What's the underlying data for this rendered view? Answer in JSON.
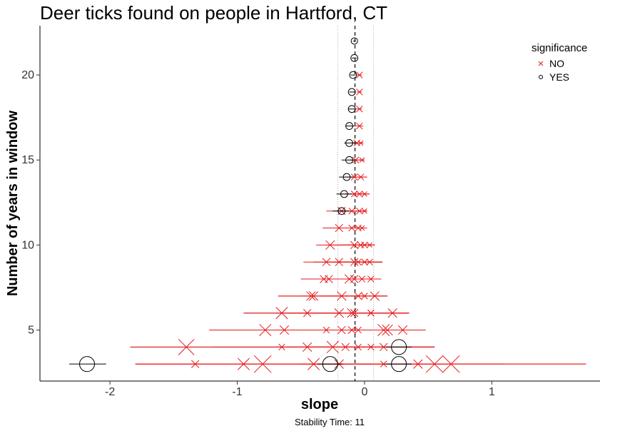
{
  "chart_data": {
    "type": "scatter",
    "title": "Deer ticks found on people in Hartford, CT",
    "xlabel": "slope",
    "ylabel": "Number of years in window",
    "caption": "Stability Time: 11",
    "xlim": [
      -2.55,
      1.85
    ],
    "ylim": [
      2.0,
      22.9
    ],
    "x_ticks": [
      -2,
      -1,
      0,
      1
    ],
    "y_ticks": [
      5,
      10,
      15,
      20
    ],
    "reference_lines": {
      "dashed_x": -0.075,
      "dotted_x": [
        -0.21,
        0.07
      ]
    },
    "grid": false,
    "legend": {
      "title": "significance",
      "position": "top-right",
      "items": [
        {
          "label": "NO",
          "marker": "x",
          "color": "#e41a1c"
        },
        {
          "label": "YES",
          "marker": "circle",
          "color": "#000000"
        }
      ]
    },
    "colors": {
      "NO": "#e41a1c",
      "YES": "#000000"
    },
    "series": [
      {
        "name": "NO",
        "marker": "x",
        "points": [
          {
            "y": 3,
            "x": -1.33,
            "xmin": -1.8,
            "xmax": -0.85,
            "size": 0.3
          },
          {
            "y": 3,
            "x": -0.95,
            "xmin": -1.8,
            "xmax": -0.1,
            "size": 0.6
          },
          {
            "y": 3,
            "x": -0.8,
            "xmin": -1.8,
            "xmax": 0.2,
            "size": 1.0
          },
          {
            "y": 3,
            "x": -0.4,
            "xmin": -1.8,
            "xmax": 0.6,
            "size": 0.6
          },
          {
            "y": 3,
            "x": -0.2,
            "xmin": -0.8,
            "xmax": 0.4,
            "size": 0.4
          },
          {
            "y": 3,
            "x": 0.15,
            "xmin": -0.4,
            "xmax": 0.7,
            "size": 0.2
          },
          {
            "y": 3,
            "x": 0.42,
            "xmin": -0.3,
            "xmax": 1.1,
            "size": 0.4
          },
          {
            "y": 3,
            "x": 0.55,
            "xmin": -0.5,
            "xmax": 1.74,
            "size": 1.0
          },
          {
            "y": 3,
            "x": 0.68,
            "xmin": -0.5,
            "xmax": 1.74,
            "size": 1.0
          },
          {
            "y": 4,
            "x": -1.4,
            "xmin": -1.84,
            "xmax": -0.9,
            "size": 0.9
          },
          {
            "y": 4,
            "x": -0.65,
            "xmin": -1.84,
            "xmax": 0.55,
            "size": 0.2
          },
          {
            "y": 4,
            "x": -0.45,
            "xmin": -1.2,
            "xmax": 0.4,
            "size": 0.4
          },
          {
            "y": 4,
            "x": -0.25,
            "xmin": -0.9,
            "xmax": 0.55,
            "size": 0.6
          },
          {
            "y": 4,
            "x": -0.15,
            "xmin": -0.7,
            "xmax": 0.55,
            "size": 0.3
          },
          {
            "y": 4,
            "x": -0.05,
            "xmin": -0.6,
            "xmax": 0.55,
            "size": 0.2
          },
          {
            "y": 4,
            "x": 0.05,
            "xmin": -0.5,
            "xmax": 0.55,
            "size": 0.2
          },
          {
            "y": 4,
            "x": 0.15,
            "xmin": -0.4,
            "xmax": 0.55,
            "size": 0.3
          },
          {
            "y": 5,
            "x": -0.78,
            "xmin": -1.22,
            "xmax": -0.3,
            "size": 0.6
          },
          {
            "y": 5,
            "x": -0.63,
            "xmin": -1.22,
            "xmax": 0.0,
            "size": 0.4
          },
          {
            "y": 5,
            "x": -0.3,
            "xmin": -1.0,
            "xmax": 0.4,
            "size": 0.2
          },
          {
            "y": 5,
            "x": -0.18,
            "xmin": -0.7,
            "xmax": 0.3,
            "size": 0.3
          },
          {
            "y": 5,
            "x": -0.1,
            "xmin": -0.6,
            "xmax": 0.4,
            "size": 0.3
          },
          {
            "y": 5,
            "x": -0.05,
            "xmin": -0.5,
            "xmax": 0.48,
            "size": 0.2
          },
          {
            "y": 5,
            "x": 0.15,
            "xmin": -0.3,
            "xmax": 0.48,
            "size": 0.6
          },
          {
            "y": 5,
            "x": 0.18,
            "xmin": -0.3,
            "xmax": 0.48,
            "size": 0.5
          },
          {
            "y": 5,
            "x": 0.3,
            "xmin": -0.2,
            "xmax": 0.48,
            "size": 0.4
          },
          {
            "y": 6,
            "x": -0.65,
            "xmin": -0.95,
            "xmax": -0.35,
            "size": 0.6
          },
          {
            "y": 6,
            "x": -0.45,
            "xmin": -0.95,
            "xmax": 0.1,
            "size": 0.3
          },
          {
            "y": 6,
            "x": -0.2,
            "xmin": -0.7,
            "xmax": 0.3,
            "size": 0.4
          },
          {
            "y": 6,
            "x": -0.1,
            "xmin": -0.6,
            "xmax": 0.35,
            "size": 0.4
          },
          {
            "y": 6,
            "x": -0.08,
            "xmin": -0.5,
            "xmax": 0.35,
            "size": 0.3
          },
          {
            "y": 6,
            "x": 0.05,
            "xmin": -0.3,
            "xmax": 0.35,
            "size": 0.2
          },
          {
            "y": 6,
            "x": 0.05,
            "xmin": -0.25,
            "xmax": 0.35,
            "size": 0.2
          },
          {
            "y": 6,
            "x": 0.22,
            "xmin": -0.1,
            "xmax": 0.35,
            "size": 0.4
          },
          {
            "y": 7,
            "x": -0.42,
            "xmin": -0.68,
            "xmax": -0.1,
            "size": 0.4
          },
          {
            "y": 7,
            "x": -0.4,
            "xmin": -0.68,
            "xmax": 0.0,
            "size": 0.4
          },
          {
            "y": 7,
            "x": -0.18,
            "xmin": -0.5,
            "xmax": 0.18,
            "size": 0.4
          },
          {
            "y": 7,
            "x": -0.05,
            "xmin": -0.35,
            "xmax": 0.18,
            "size": 0.3
          },
          {
            "y": 7,
            "x": 0.0,
            "xmin": -0.25,
            "xmax": 0.18,
            "size": 0.2
          },
          {
            "y": 7,
            "x": 0.08,
            "xmin": -0.15,
            "xmax": 0.18,
            "size": 0.4
          },
          {
            "y": 8,
            "x": -0.32,
            "xmin": -0.5,
            "xmax": -0.1,
            "size": 0.3
          },
          {
            "y": 8,
            "x": -0.28,
            "xmin": -0.5,
            "xmax": 0.05,
            "size": 0.3
          },
          {
            "y": 8,
            "x": -0.12,
            "xmin": -0.35,
            "xmax": 0.13,
            "size": 0.4
          },
          {
            "y": 8,
            "x": -0.08,
            "xmin": -0.25,
            "xmax": 0.13,
            "size": 0.3
          },
          {
            "y": 8,
            "x": -0.02,
            "xmin": -0.2,
            "xmax": 0.13,
            "size": 0.2
          },
          {
            "y": 8,
            "x": 0.05,
            "xmin": -0.15,
            "xmax": 0.13,
            "size": 0.2
          },
          {
            "y": 9,
            "x": -0.3,
            "xmin": -0.48,
            "xmax": -0.1,
            "size": 0.3
          },
          {
            "y": 9,
            "x": -0.2,
            "xmin": -0.4,
            "xmax": 0.0,
            "size": 0.3
          },
          {
            "y": 9,
            "x": -0.08,
            "xmin": -0.3,
            "xmax": 0.14,
            "size": 0.3
          },
          {
            "y": 9,
            "x": -0.05,
            "xmin": -0.25,
            "xmax": 0.14,
            "size": 0.2
          },
          {
            "y": 9,
            "x": 0.0,
            "xmin": -0.2,
            "xmax": 0.14,
            "size": 0.2
          },
          {
            "y": 9,
            "x": 0.04,
            "xmin": -0.15,
            "xmax": 0.14,
            "size": 0.2
          },
          {
            "y": 10,
            "x": -0.27,
            "xmin": -0.38,
            "xmax": -0.1,
            "size": 0.4
          },
          {
            "y": 10,
            "x": -0.08,
            "xmin": -0.3,
            "xmax": 0.08,
            "size": 0.3
          },
          {
            "y": 10,
            "x": -0.03,
            "xmin": -0.2,
            "xmax": 0.08,
            "size": 0.2
          },
          {
            "y": 10,
            "x": 0.0,
            "xmin": -0.15,
            "xmax": 0.08,
            "size": 0.2
          },
          {
            "y": 10,
            "x": 0.04,
            "xmin": -0.1,
            "xmax": 0.08,
            "size": 0.1
          },
          {
            "y": 11,
            "x": -0.2,
            "xmin": -0.33,
            "xmax": -0.05,
            "size": 0.3
          },
          {
            "y": 11,
            "x": -0.1,
            "xmin": -0.25,
            "xmax": 0.02,
            "size": 0.2
          },
          {
            "y": 11,
            "x": -0.05,
            "xmin": -0.2,
            "xmax": 0.02,
            "size": 0.2
          },
          {
            "y": 11,
            "x": -0.02,
            "xmin": -0.15,
            "xmax": 0.02,
            "size": 0.1
          },
          {
            "y": 12,
            "x": -0.18,
            "xmin": -0.3,
            "xmax": -0.05,
            "size": 0.3
          },
          {
            "y": 12,
            "x": -0.1,
            "xmin": -0.22,
            "xmax": 0.02,
            "size": 0.2
          },
          {
            "y": 12,
            "x": -0.04,
            "xmin": -0.18,
            "xmax": 0.02,
            "size": 0.2
          },
          {
            "y": 12,
            "x": 0.0,
            "xmin": -0.1,
            "xmax": 0.02,
            "size": 0.1
          },
          {
            "y": 13,
            "x": -0.08,
            "xmin": -0.2,
            "xmax": 0.04,
            "size": 0.2
          },
          {
            "y": 13,
            "x": -0.04,
            "xmin": -0.15,
            "xmax": 0.04,
            "size": 0.2
          },
          {
            "y": 13,
            "x": 0.0,
            "xmin": -0.1,
            "xmax": 0.04,
            "size": 0.1
          },
          {
            "y": 14,
            "x": -0.08,
            "xmin": -0.15,
            "xmax": 0.02,
            "size": 0.2
          },
          {
            "y": 14,
            "x": -0.03,
            "xmin": -0.1,
            "xmax": 0.02,
            "size": 0.2
          },
          {
            "y": 15,
            "x": -0.07,
            "xmin": -0.12,
            "xmax": 0.0,
            "size": 0.2
          },
          {
            "y": 15,
            "x": -0.02,
            "xmin": -0.08,
            "xmax": 0.0,
            "size": 0.1
          },
          {
            "y": 16,
            "x": -0.06,
            "xmin": -0.1,
            "xmax": -0.01,
            "size": 0.2
          },
          {
            "y": 16,
            "x": -0.03,
            "xmin": -0.08,
            "xmax": -0.01,
            "size": 0.1
          },
          {
            "y": 17,
            "x": -0.04,
            "xmin": -0.08,
            "xmax": -0.01,
            "size": 0.2
          },
          {
            "y": 18,
            "x": -0.04,
            "xmin": -0.07,
            "xmax": -0.02,
            "size": 0.2
          },
          {
            "y": 19,
            "x": -0.04,
            "xmin": -0.06,
            "xmax": -0.02,
            "size": 0.2
          },
          {
            "y": 20,
            "x": -0.04,
            "xmin": -0.06,
            "xmax": -0.02,
            "size": 0.2
          }
        ]
      },
      {
        "name": "YES",
        "marker": "circle",
        "points": [
          {
            "y": 3,
            "x": -2.18,
            "xmin": -2.32,
            "xmax": -2.03,
            "size": 1.0
          },
          {
            "y": 3,
            "x": -0.27,
            "xmin": -0.37,
            "xmax": -0.17,
            "size": 1.0
          },
          {
            "y": 3,
            "x": 0.27,
            "xmin": 0.17,
            "xmax": 0.37,
            "size": 1.0
          },
          {
            "y": 4,
            "x": 0.27,
            "xmin": 0.17,
            "xmax": 0.37,
            "size": 1.0
          },
          {
            "y": 12,
            "x": -0.18,
            "xmin": -0.25,
            "xmax": -0.12,
            "size": 0.3
          },
          {
            "y": 13,
            "x": -0.16,
            "xmin": -0.22,
            "xmax": -0.1,
            "size": 0.3
          },
          {
            "y": 14,
            "x": -0.14,
            "xmin": -0.2,
            "xmax": -0.09,
            "size": 0.3
          },
          {
            "y": 15,
            "x": -0.12,
            "xmin": -0.18,
            "xmax": -0.07,
            "size": 0.3
          },
          {
            "y": 16,
            "x": -0.12,
            "xmin": -0.16,
            "xmax": -0.07,
            "size": 0.3
          },
          {
            "y": 17,
            "x": -0.12,
            "xmin": -0.15,
            "xmax": -0.08,
            "size": 0.3
          },
          {
            "y": 18,
            "x": -0.1,
            "xmin": -0.13,
            "xmax": -0.07,
            "size": 0.3
          },
          {
            "y": 19,
            "x": -0.1,
            "xmin": -0.12,
            "xmax": -0.07,
            "size": 0.3
          },
          {
            "y": 20,
            "x": -0.09,
            "xmin": -0.11,
            "xmax": -0.07,
            "size": 0.3
          },
          {
            "y": 21,
            "x": -0.08,
            "xmin": -0.1,
            "xmax": -0.06,
            "size": 0.3
          },
          {
            "y": 22,
            "x": -0.08,
            "xmin": -0.09,
            "xmax": -0.07,
            "size": 0.25
          }
        ]
      }
    ]
  }
}
